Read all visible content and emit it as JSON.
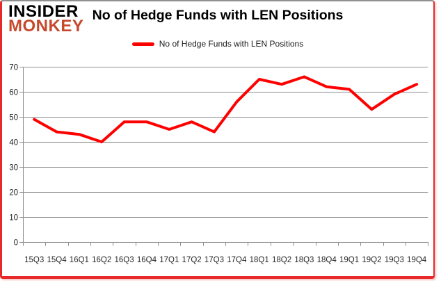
{
  "logo": {
    "line1": "INSIDER",
    "line2": "MONKEY"
  },
  "header": {
    "title": "No of Hedge Funds with LEN Positions"
  },
  "legend": {
    "label": "No of Hedge Funds with LEN Positions"
  },
  "colors": {
    "series_line": "#ff0000",
    "card_border": "#e62a2a",
    "card_border_top": "#8f8f8f",
    "gridline": "#8e8e8e",
    "axis_label": "#262626",
    "logo_insider": "#000000",
    "logo_monkey": "#c7482c",
    "background": "#ffffff"
  },
  "chart_data": {
    "type": "line",
    "title": "No of Hedge Funds with LEN Positions",
    "categories": [
      "15Q3",
      "15Q4",
      "16Q1",
      "16Q2",
      "16Q3",
      "16Q4",
      "17Q1",
      "17Q2",
      "17Q3",
      "17Q4",
      "18Q1",
      "18Q2",
      "18Q3",
      "18Q4",
      "19Q1",
      "19Q2",
      "19Q3",
      "19Q4"
    ],
    "series": [
      {
        "name": "No of Hedge Funds with LEN Positions",
        "color": "#ff0000",
        "values": [
          49,
          44,
          43,
          40,
          48,
          48,
          45,
          48,
          44,
          56,
          65,
          63,
          66,
          62,
          61,
          53,
          59,
          63
        ]
      }
    ],
    "xlabel": "",
    "ylabel": "",
    "ylim": [
      0,
      70
    ],
    "yticks": [
      0,
      10,
      20,
      30,
      40,
      50,
      60,
      70
    ],
    "grid": "horizontal",
    "legend_position": "top-center"
  }
}
